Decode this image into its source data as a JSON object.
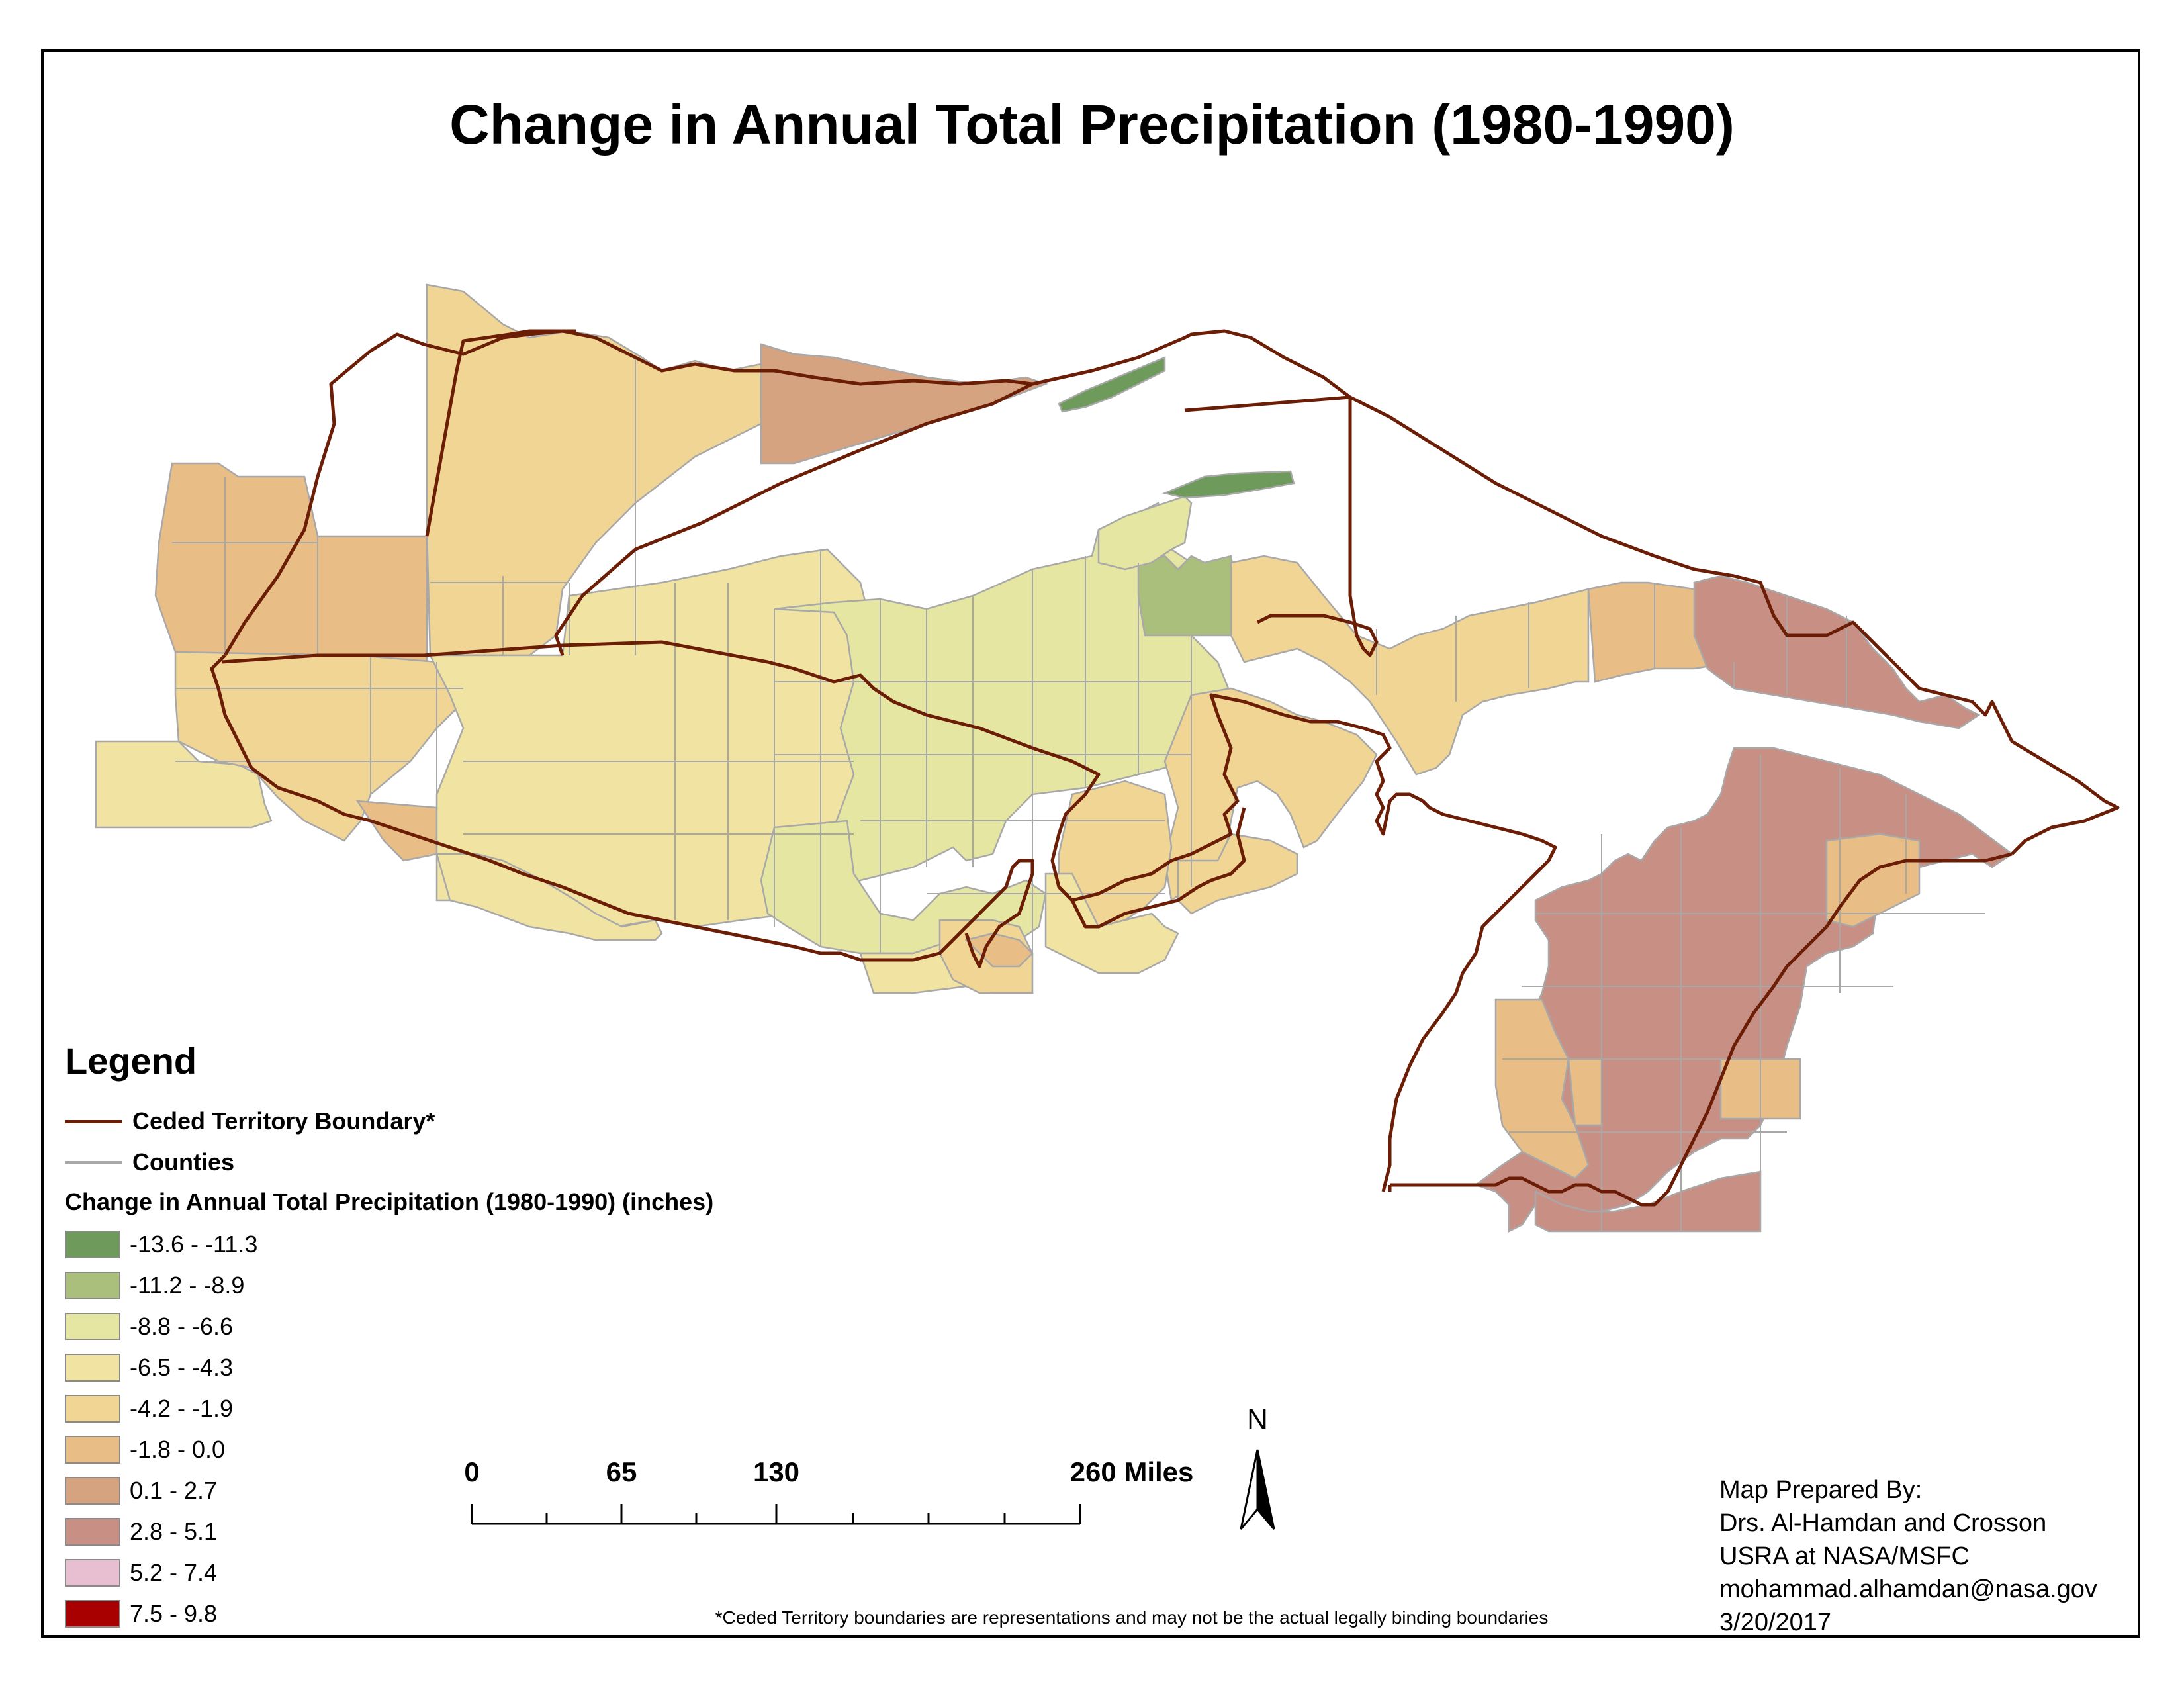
{
  "title": "Change in Annual Total Precipitation (1980-1990)",
  "legend": {
    "heading": "Legend",
    "line_items": [
      {
        "label": "Ceded Territory Boundary*",
        "color": "#6b1d05"
      },
      {
        "label": "Counties",
        "color": "#a8a8a8"
      }
    ],
    "classes_title": "Change in Annual Total Precipitation (1980-1990) (inches)",
    "classes": [
      {
        "label": "-13.6 - -11.3",
        "color": "#6e9a5c"
      },
      {
        "label": "-11.2 - -8.9",
        "color": "#a9bf7b"
      },
      {
        "label": "-8.8 - -6.6",
        "color": "#e5e6a2"
      },
      {
        "label": "-6.5 - -4.3",
        "color": "#f1e3a1"
      },
      {
        "label": "-4.2 - -1.9",
        "color": "#f1d594"
      },
      {
        "label": "-1.8 - 0.0",
        "color": "#e9bd86"
      },
      {
        "label": "0.1 - 2.7",
        "color": "#d6a381"
      },
      {
        "label": "2.8 - 5.1",
        "color": "#c88f85"
      },
      {
        "label": "5.2 - 7.4",
        "color": "#e8bfd0"
      },
      {
        "label": "7.5 - 9.8",
        "color": "#a80000"
      }
    ]
  },
  "scale_bar": {
    "labels": [
      "0",
      "65",
      "130",
      "260 Miles"
    ],
    "values": [
      0,
      65,
      130,
      260
    ]
  },
  "north_arrow": {
    "letter": "N",
    "icon": "north-arrow-icon"
  },
  "credits": {
    "lines": [
      "Map Prepared By:",
      "Drs. Al-Hamdan and Crosson",
      "USRA at NASA/MSFC",
      "mohammad.alhamdan@nasa.gov",
      "3/20/2017"
    ]
  },
  "footnote": "*Ceded Territory boundaries are representations and may not be the actual legally binding boundaries",
  "colors": {
    "boundary": "#6b1d05",
    "county_line": "#a8a8a8",
    "frame": "#000000"
  }
}
